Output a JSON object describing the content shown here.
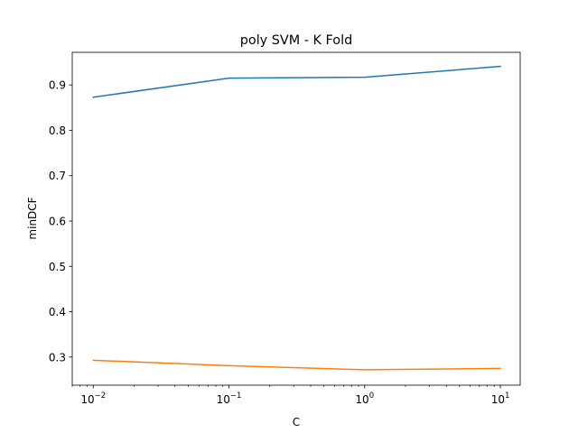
{
  "chart_data": {
    "type": "line",
    "title": "poly SVM - K Fold",
    "xlabel": "C",
    "ylabel": "minDCF",
    "x_scale": "log",
    "x": [
      0.01,
      0.1,
      1,
      10
    ],
    "xlim": [
      0.007,
      14
    ],
    "ylim": [
      0.238,
      0.972
    ],
    "x_ticks": [
      {
        "value": 0.01,
        "base": "10",
        "exp": "−2"
      },
      {
        "value": 0.1,
        "base": "10",
        "exp": "−1"
      },
      {
        "value": 1,
        "base": "10",
        "exp": "0"
      },
      {
        "value": 10,
        "base": "10",
        "exp": "1"
      }
    ],
    "y_ticks": [
      {
        "value": 0.3,
        "label": "0.3"
      },
      {
        "value": 0.4,
        "label": "0.4"
      },
      {
        "value": 0.5,
        "label": "0.5"
      },
      {
        "value": 0.6,
        "label": "0.6"
      },
      {
        "value": 0.7,
        "label": "0.7"
      },
      {
        "value": 0.8,
        "label": "0.8"
      },
      {
        "value": 0.9,
        "label": "0.9"
      }
    ],
    "grid": false,
    "legend": "none",
    "series": [
      {
        "color": "#1f77b4",
        "values": [
          0.873,
          0.915,
          0.917,
          0.941
        ]
      },
      {
        "color": "#ff7f0e",
        "values": [
          0.293,
          0.281,
          0.272,
          0.275
        ]
      }
    ]
  }
}
